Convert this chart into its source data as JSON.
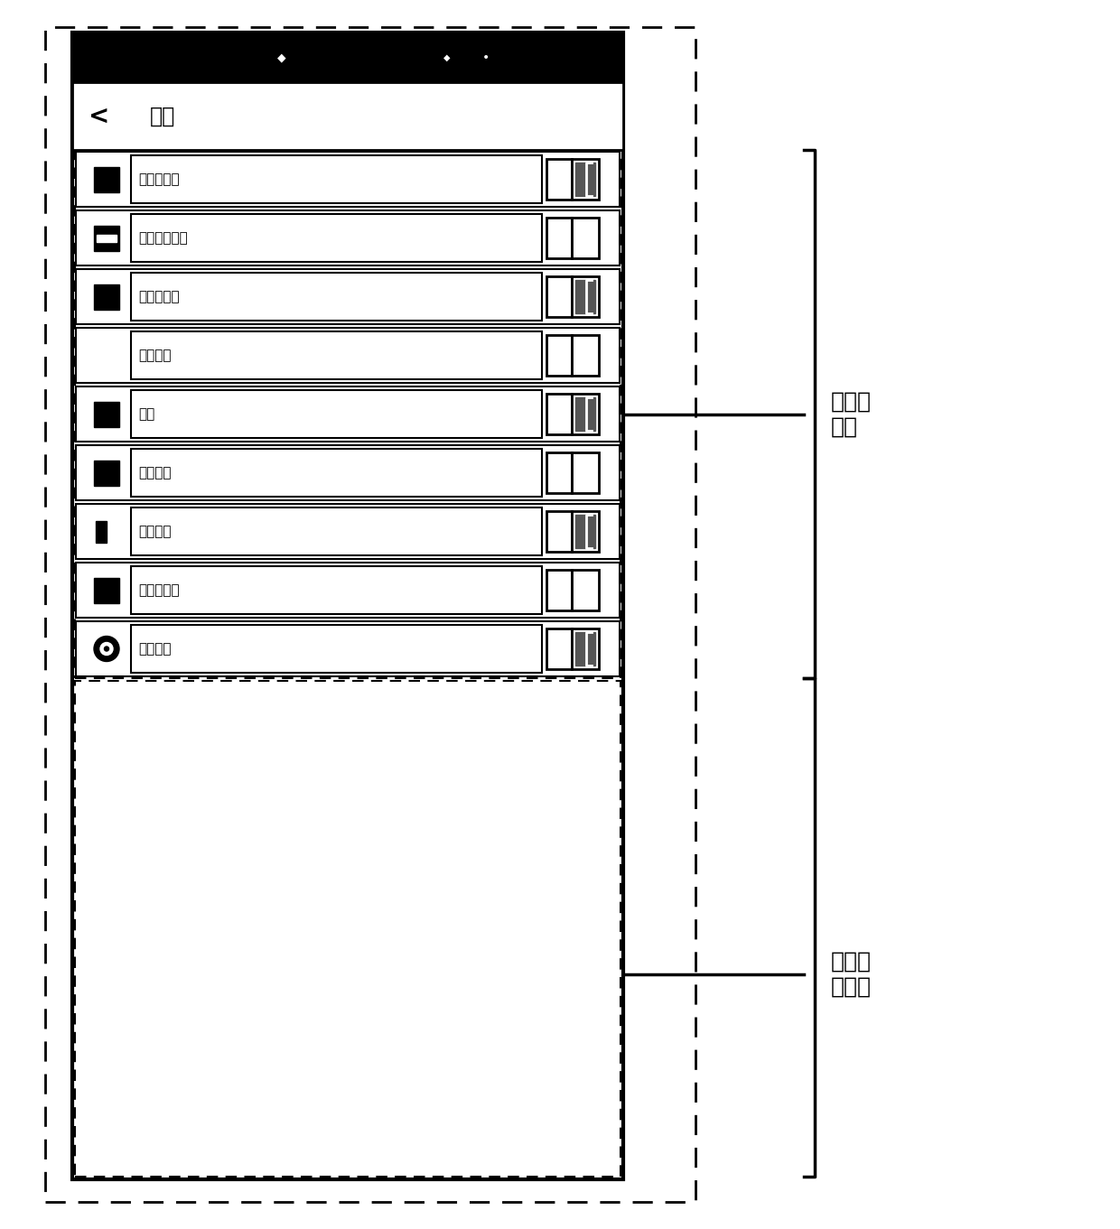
{
  "fig_width": 12.4,
  "fig_height": 13.61,
  "bg_color": "#ffffff",
  "menu_items": [
    {
      "label": "日期和时间",
      "icon": "square_filled",
      "toggle": "A"
    },
    {
      "label": "语言和输入法",
      "icon": "square_minus",
      "toggle": "B"
    },
    {
      "label": "定时开关机",
      "icon": "square_filled",
      "toggle": "A"
    },
    {
      "label": "辅助功能",
      "icon": "circle_open",
      "toggle": "B"
    },
    {
      "label": "打印",
      "icon": "square_filled_lg",
      "toggle": "A"
    },
    {
      "label": "系统更新",
      "icon": "square_filled_sm",
      "toggle": "B"
    },
    {
      "label": "系统重置",
      "icon": "circle_partial",
      "toggle": "A"
    },
    {
      "label": "开发者选项",
      "icon": "square_filled",
      "toggle": "B"
    },
    {
      "label": "关于手机",
      "icon": "circle_dot",
      "toggle": "A"
    }
  ],
  "label1": "触控响\n应区",
  "label2": "非触控\n响应区"
}
